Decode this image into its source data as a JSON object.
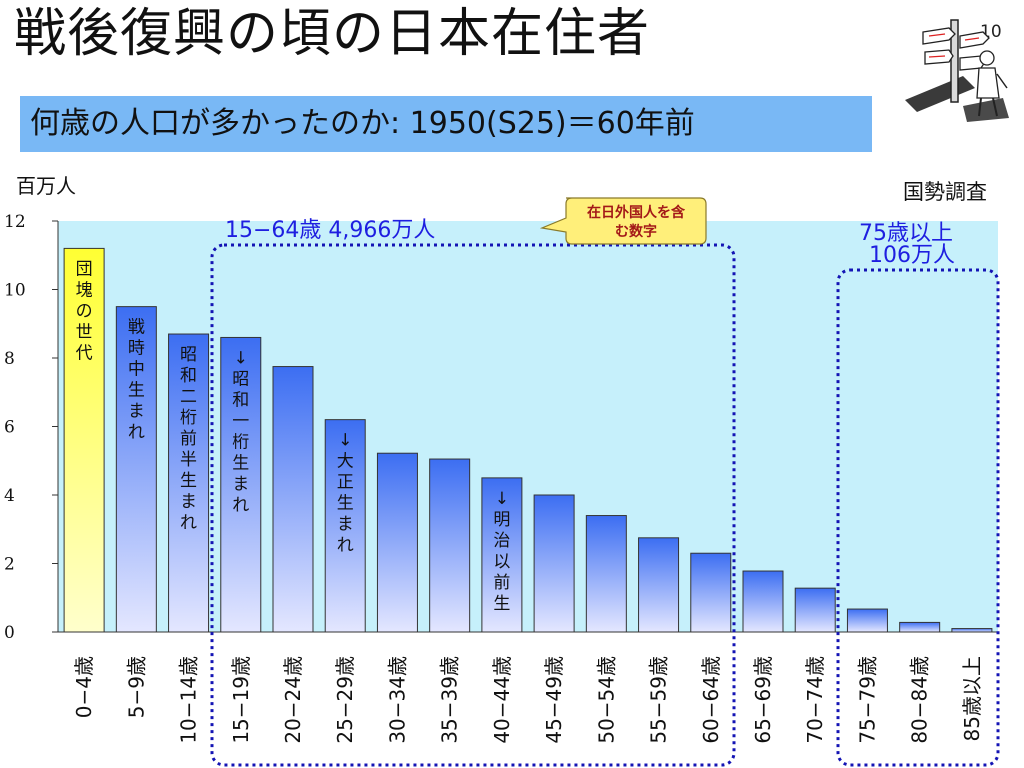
{
  "page": {
    "title": "戦後復興の頃の日本在住者",
    "subtitle": "何歳の人口が多かったのか: 1950(S25)＝60年前",
    "page_number": "10",
    "unit": "百万人",
    "source": "国勢調査"
  },
  "annotations": {
    "working_age": "15−64歳 4,966万人",
    "elderly_line1": "75歳以上",
    "elderly_line2": "106万人",
    "callout_line1": "在日外国人を含",
    "callout_line2": "む数字"
  },
  "colors": {
    "plot_bg": "#c6f0fb",
    "bar_light": "#e4e7ff",
    "bar_dark": "#3c6ef2",
    "bar_highlight": "#ffff33",
    "dotted_box": "#1414b4",
    "annotation_text": "#1e1ee0",
    "subtitle_bg": "#79b8f5"
  },
  "icons": {
    "illustration": "signpost-traveler-icon"
  },
  "chart_data": {
    "type": "bar",
    "title": "",
    "ylabel": "百万人",
    "ylim": [
      0,
      12
    ],
    "yticks": [
      0,
      2,
      4,
      6,
      8,
      10,
      12
    ],
    "grid": false,
    "categories": [
      "0−4歳",
      "5−9歳",
      "10−14歳",
      "15−19歳",
      "20−24歳",
      "25−29歳",
      "30−34歳",
      "35−39歳",
      "40−44歳",
      "45−49歳",
      "50−54歳",
      "55−59歳",
      "60−64歳",
      "65−69歳",
      "70−74歳",
      "75−79歳",
      "80−84歳",
      "85歳以上"
    ],
    "values": [
      11.2,
      9.5,
      8.7,
      8.6,
      7.75,
      6.2,
      5.22,
      5.05,
      4.5,
      4.0,
      3.4,
      2.75,
      2.3,
      1.78,
      1.28,
      0.67,
      0.28,
      0.1
    ],
    "highlight_index": 0,
    "bar_labels": [
      {
        "index": 0,
        "text": "団塊の世代"
      },
      {
        "index": 1,
        "text": "戦時中生まれ"
      },
      {
        "index": 2,
        "text": "昭和二桁前半生まれ"
      },
      {
        "index": 3,
        "text": "↓昭和一桁生まれ"
      },
      {
        "index": 5,
        "text": "↓大正生まれ"
      },
      {
        "index": 8,
        "text": "↓明治以前生"
      }
    ]
  }
}
